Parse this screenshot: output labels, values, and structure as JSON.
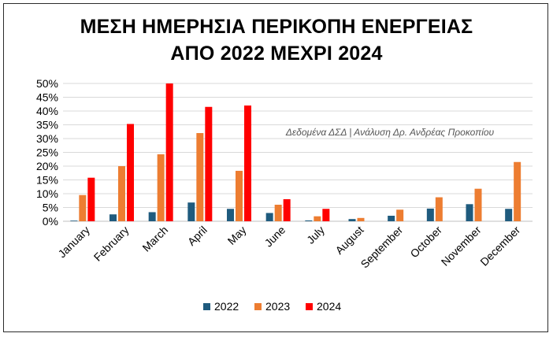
{
  "chart_data": {
    "type": "bar",
    "title": "ΜΕΣΗ ΗΜΕΡΗΣΙΑ ΠΕΡΙΚΟΠΗ ΕΝΕΡΓΕΙΑΣ",
    "subtitle": "ΑΠΟ 2022 ΜΕΧΡΙ 2024",
    "annotation": "Δεδομένα ΔΣΔ | Ανάλυση Δρ. Ανδρέας Προκοπίου",
    "categories": [
      "January",
      "February",
      "March",
      "April",
      "May",
      "June",
      "July",
      "August",
      "September",
      "October",
      "November",
      "December"
    ],
    "series": [
      {
        "name": "2022",
        "color": "#1f5b7e",
        "values": [
          0.2,
          2.5,
          3.3,
          6.8,
          4.5,
          3.0,
          0.3,
          0.8,
          2.0,
          4.6,
          6.2,
          4.5
        ]
      },
      {
        "name": "2023",
        "color": "#ed7d31",
        "values": [
          9.5,
          20.0,
          24.3,
          32.0,
          18.3,
          6.0,
          1.8,
          1.2,
          4.2,
          8.7,
          11.8,
          21.5
        ]
      },
      {
        "name": "2024",
        "color": "#ff0000",
        "values": [
          15.8,
          35.3,
          50.0,
          41.5,
          42.0,
          8.0,
          4.5,
          null,
          null,
          null,
          null,
          null
        ]
      }
    ],
    "yticks": [
      "0%",
      "5%",
      "10%",
      "15%",
      "20%",
      "25%",
      "30%",
      "35%",
      "40%",
      "45%",
      "50%"
    ],
    "ylim": [
      0,
      50
    ],
    "grid": true,
    "legend_position": "bottom"
  }
}
